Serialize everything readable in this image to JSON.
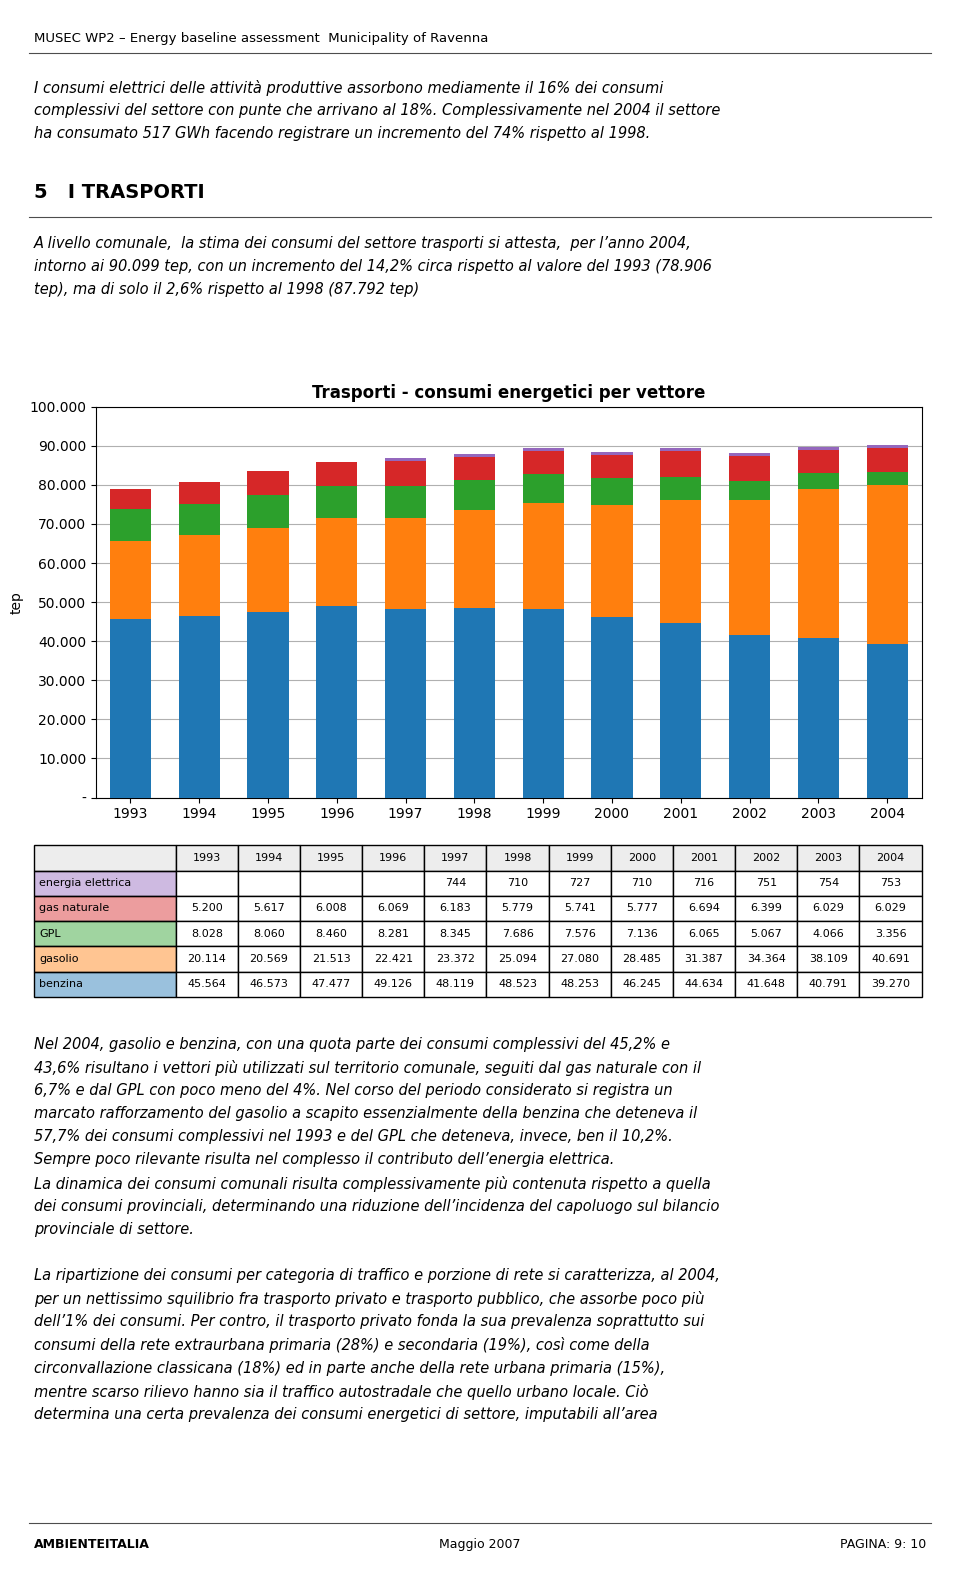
{
  "chart_data": {
    "type": "bar",
    "stacked": true,
    "title": "Trasporti - consumi energetici per vettore",
    "ylabel": "tep",
    "categories": [
      "1993",
      "1994",
      "1995",
      "1996",
      "1997",
      "1998",
      "1999",
      "2000",
      "2001",
      "2002",
      "2003",
      "2004"
    ],
    "series": [
      {
        "name": "benzina",
        "values": [
          45564,
          46573,
          47477,
          49126,
          48119,
          48523,
          48253,
          46245,
          44634,
          41648,
          40791,
          39270
        ],
        "value_labels": [
          "45.564",
          "46.573",
          "47.477",
          "49.126",
          "48.119",
          "48.523",
          "48.253",
          "46.245",
          "44.634",
          "41.648",
          "40.791",
          "39.270"
        ]
      },
      {
        "name": "gasolio",
        "values": [
          20114,
          20569,
          21513,
          22421,
          23372,
          25094,
          27080,
          28485,
          31387,
          34364,
          38109,
          40691
        ],
        "value_labels": [
          "20.114",
          "20.569",
          "21.513",
          "22.421",
          "23.372",
          "25.094",
          "27.080",
          "28.485",
          "31.387",
          "34.364",
          "38.109",
          "40.691"
        ]
      },
      {
        "name": "GPL",
        "values": [
          8028,
          8060,
          8460,
          8281,
          8345,
          7686,
          7576,
          7136,
          6065,
          5067,
          4066,
          3356
        ],
        "value_labels": [
          "8.028",
          "8.060",
          "8.460",
          "8.281",
          "8.345",
          "7.686",
          "7.576",
          "7.136",
          "6.065",
          "5.067",
          "4.066",
          "3.356"
        ]
      },
      {
        "name": "gas naturale",
        "values": [
          5200,
          5617,
          6008,
          6069,
          6183,
          5779,
          5741,
          5777,
          6694,
          6399,
          6029,
          6029
        ],
        "value_labels": [
          "5.200",
          "5.617",
          "6.008",
          "6.069",
          "6.183",
          "5.779",
          "5.741",
          "5.777",
          "6.694",
          "6.399",
          "6.029",
          "6.029"
        ]
      },
      {
        "name": "energia elettrica",
        "values": [
          0,
          0,
          0,
          0,
          744,
          710,
          727,
          710,
          716,
          751,
          754,
          753
        ],
        "value_labels": [
          null,
          null,
          null,
          null,
          "744",
          "710",
          "727",
          "710",
          "716",
          "751",
          "754",
          "753"
        ]
      }
    ],
    "ylim": [
      0,
      100000
    ],
    "yticks": [
      {
        "value": 0,
        "label": "-"
      },
      {
        "value": 10000,
        "label": "10.000"
      },
      {
        "value": 20000,
        "label": "20.000"
      },
      {
        "value": 30000,
        "label": "30.000"
      },
      {
        "value": 40000,
        "label": "40.000"
      },
      {
        "value": 50000,
        "label": "50.000"
      },
      {
        "value": 60000,
        "label": "60.000"
      },
      {
        "value": 70000,
        "label": "70.000"
      },
      {
        "value": 80000,
        "label": "80.000"
      },
      {
        "value": 90000,
        "label": "90.000"
      },
      {
        "value": 100000,
        "label": "100.000"
      }
    ],
    "grid": true,
    "annotations": [
      [
        "MUSEC WP2 – Energy baseline assessment  Municipality of Ravenna"
      ],
      [
        "I consumi elettrici delle attività produttive assorbono mediamente il 16% dei consumi",
        "complessivi del settore con punte che arrivano al 18%. Complessivamente nel 2004 il settore",
        "ha consumato 517 GWh facendo registrare un incremento del 74% rispetto al 1998."
      ],
      [
        "5   I TRASPORTI"
      ],
      [
        "A livello comunale,  la stima dei consumi del settore trasporti si attesta,  per l’anno 2004,",
        "intorno ai 90.099 tep, con un incremento del 14,2% circa rispetto al valore del 1993 (78.906",
        "tep), ma di solo il 2,6% rispetto al 1998 (87.792 tep)"
      ],
      [
        "Nel 2004, gasolio e benzina, con una quota parte dei consumi complessivi del 45,2% e",
        "43,6% risultano i vettori più utilizzati sul territorio comunale, seguiti dal gas naturale con il",
        "6,7% e dal GPL con poco meno del 4%. Nel corso del periodo considerato si registra un",
        "marcato rafforzamento del gasolio a scapito essenzialmente della benzina che deteneva il",
        "57,7% dei consumi complessivi nel 1993 e del GPL che deteneva, invece, ben il 10,2%.",
        "Sempre poco rilevante risulta nel complesso il contributo dell’energia elettrica.",
        "La dinamica dei consumi comunali risulta complessivamente più contenuta rispetto a quella",
        "dei consumi provinciali, determinando una riduzione dell’incidenza del capoluogo sul bilancio",
        "provinciale di settore."
      ],
      [
        "La ripartizione dei consumi per categoria di traffico e porzione di rete si caratterizza, al 2004,",
        "per un nettissimo squilibrio fra trasporto privato e trasporto pubblico, che assorbe poco più",
        "dell’1% dei consumi. Per contro, il trasporto privato fonda la sua prevalenza soprattutto sui",
        "consumi della rete extraurbana primaria (28%) e secondaria (19%), così come della",
        "circonvallazione classicana (18%) ed in parte anche della rete urbana primaria (15%),",
        "mentre scarso rilievo hanno sia il traffico autostradale che quello urbano locale. Ciò",
        "determina una certa prevalenza dei consumi energetici di settore, imputabili all’area"
      ],
      [
        "AMBIENTEITALIA",
        "Maggio 2007",
        "PAGINA: 9: 10"
      ]
    ]
  }
}
